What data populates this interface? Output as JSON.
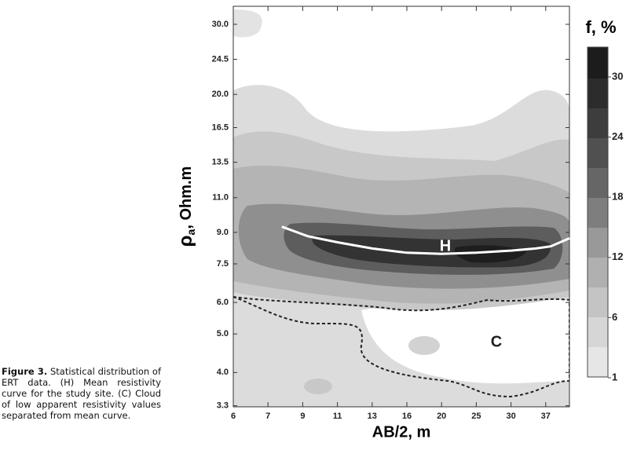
{
  "chart_data": {
    "type": "contour",
    "x_label": "AB/2, m",
    "y_label": {
      "symbol": "ρ",
      "subscript": "a",
      "unit": ", Ohm.m"
    },
    "xlim": [
      6,
      41.8
    ],
    "xticks": [
      6,
      7,
      9,
      11,
      13,
      16,
      20,
      25,
      30,
      37
    ],
    "ylim": [
      3.28,
      33.3
    ],
    "y_log": true,
    "yticks": [
      {
        "value": 30,
        "label": "30.0"
      },
      {
        "value": 24.5,
        "label": "24.5"
      },
      {
        "value": 20,
        "label": "20.0"
      },
      {
        "value": 16.5,
        "label": "16.5"
      },
      {
        "value": 13.5,
        "label": "13.5"
      },
      {
        "value": 11,
        "label": "11.0"
      },
      {
        "value": 9,
        "label": "9.0"
      },
      {
        "value": 7.5,
        "label": "7.5"
      },
      {
        "value": 6,
        "label": "6.0"
      },
      {
        "value": 5,
        "label": "5.0"
      },
      {
        "value": 4,
        "label": "4.0"
      },
      {
        "value": 3.3,
        "label": "3.3"
      }
    ],
    "mean_curve": {
      "color": "#ffffff",
      "x": [
        7.8,
        9.3,
        11,
        13,
        16,
        20,
        25,
        30,
        35,
        38,
        41.8
      ],
      "y": [
        9.3,
        8.8,
        8.5,
        8.2,
        8.0,
        7.95,
        8.0,
        8.1,
        8.2,
        8.3,
        8.7
      ]
    },
    "annotations": [
      "H",
      "C"
    ],
    "colorbar": {
      "title": "f, %",
      "ticks": [
        1,
        6,
        12,
        18,
        24,
        30
      ]
    }
  },
  "caption": {
    "label": "Figure 3.",
    "text": "Statistical distribution of ERT data. (H) Mean resistivity curve for the study site. (C) Cloud of low apparent resistivity values separated from mean curve."
  }
}
